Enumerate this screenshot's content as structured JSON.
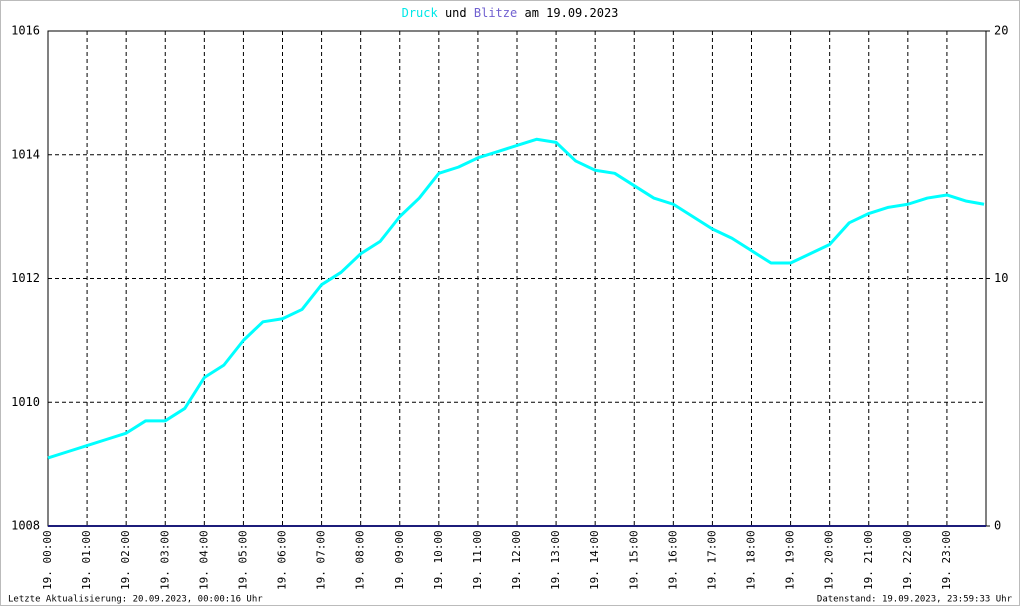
{
  "chart_data": {
    "type": "line",
    "title_connector": "und",
    "title_suffix": "am 19.09.2023",
    "series": [
      {
        "name": "Druck",
        "color": "#00ffff",
        "axis": "y",
        "x": [
          0,
          0.5,
          1,
          1.5,
          2,
          2.5,
          3,
          3.5,
          4,
          4.5,
          5,
          5.5,
          6,
          6.5,
          7,
          7.5,
          8,
          8.5,
          9,
          9.5,
          10,
          10.5,
          11,
          11.5,
          12,
          12.5,
          13,
          13.5,
          14,
          14.5,
          15,
          15.5,
          16,
          16.5,
          17,
          17.5,
          18,
          18.5,
          19,
          19.5,
          20,
          20.5,
          21,
          21.5,
          22,
          22.5,
          23,
          23.5,
          23.95
        ],
        "values": [
          1009.1,
          1009.2,
          1009.3,
          1009.4,
          1009.5,
          1009.7,
          1009.7,
          1009.9,
          1010.4,
          1010.6,
          1011.0,
          1011.3,
          1011.35,
          1011.5,
          1011.9,
          1012.1,
          1012.4,
          1012.6,
          1013.0,
          1013.3,
          1013.7,
          1013.8,
          1013.95,
          1014.05,
          1014.15,
          1014.25,
          1014.2,
          1013.9,
          1013.75,
          1013.7,
          1013.5,
          1013.3,
          1013.2,
          1013.0,
          1012.8,
          1012.65,
          1012.45,
          1012.25,
          1012.25,
          1012.4,
          1012.55,
          1012.9,
          1013.05,
          1013.15,
          1013.2,
          1013.3,
          1013.35,
          1013.25,
          1013.2
        ]
      },
      {
        "name": "Blitze",
        "color": "#1c1c7a",
        "axis": "y2",
        "x": [
          0,
          24
        ],
        "values": [
          0,
          0
        ]
      }
    ],
    "xlim": [
      0,
      24
    ],
    "xticks": [
      {
        "value": 0,
        "label": "19. 00:00"
      },
      {
        "value": 1,
        "label": "19. 01:00"
      },
      {
        "value": 2,
        "label": "19. 02:00"
      },
      {
        "value": 3,
        "label": "19. 03:00"
      },
      {
        "value": 4,
        "label": "19. 04:00"
      },
      {
        "value": 5,
        "label": "19. 05:00"
      },
      {
        "value": 6,
        "label": "19. 06:00"
      },
      {
        "value": 7,
        "label": "19. 07:00"
      },
      {
        "value": 8,
        "label": "19. 08:00"
      },
      {
        "value": 9,
        "label": "19. 09:00"
      },
      {
        "value": 10,
        "label": "19. 10:00"
      },
      {
        "value": 11,
        "label": "19. 11:00"
      },
      {
        "value": 12,
        "label": "19. 12:00"
      },
      {
        "value": 13,
        "label": "19. 13:00"
      },
      {
        "value": 14,
        "label": "19. 14:00"
      },
      {
        "value": 15,
        "label": "19. 15:00"
      },
      {
        "value": 16,
        "label": "19. 16:00"
      },
      {
        "value": 17,
        "label": "19. 17:00"
      },
      {
        "value": 18,
        "label": "19. 18:00"
      },
      {
        "value": 19,
        "label": "19. 19:00"
      },
      {
        "value": 20,
        "label": "19. 20:00"
      },
      {
        "value": 21,
        "label": "19. 21:00"
      },
      {
        "value": 22,
        "label": "19. 22:00"
      },
      {
        "value": 23,
        "label": "19. 23:00"
      }
    ],
    "ylim": [
      1008,
      1016
    ],
    "yticks": [
      1008,
      1010,
      1012,
      1014,
      1016
    ],
    "y2lim": [
      0,
      20
    ],
    "y2ticks": [
      0,
      10,
      20
    ],
    "grid": true,
    "footer_left": "Letzte Aktualisierung: 20.09.2023, 00:00:16 Uhr",
    "footer_right": "Datenstand: 19.09.2023, 23:59:33 Uhr"
  }
}
